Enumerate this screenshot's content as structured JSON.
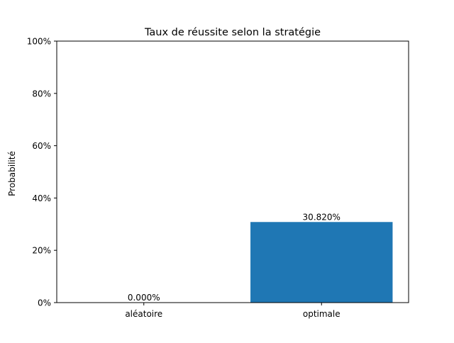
{
  "chart_data": {
    "type": "bar",
    "title": "Taux de réussite selon la stratégie",
    "xlabel": "",
    "ylabel": "Probabilité",
    "categories": [
      "aléatoire",
      "optimale"
    ],
    "values": [
      0.0,
      30.82
    ],
    "value_labels": [
      "0.000%",
      "30.820%"
    ],
    "ylim": [
      0,
      100
    ],
    "yticks": [
      0,
      20,
      40,
      60,
      80,
      100
    ],
    "ytick_labels": [
      "0%",
      "20%",
      "40%",
      "60%",
      "80%",
      "100%"
    ],
    "grid": false,
    "legend": "none",
    "bar_color": "#1f77b4"
  }
}
